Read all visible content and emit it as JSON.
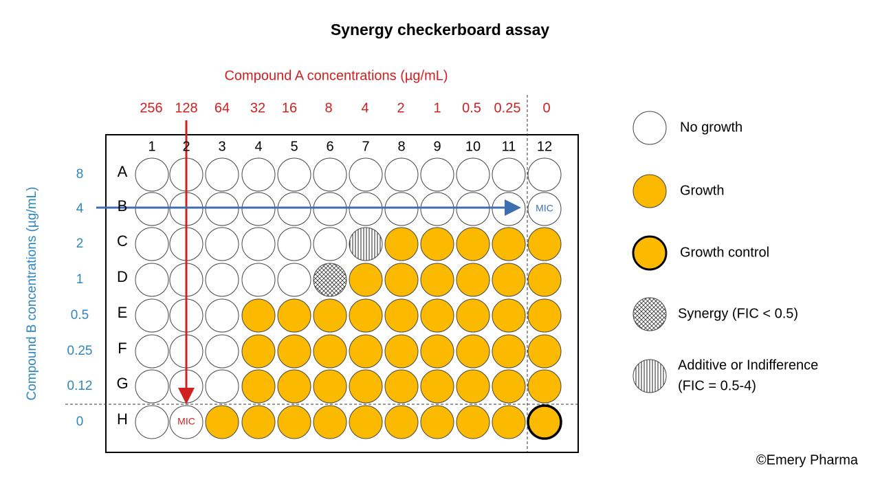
{
  "title": "Synergy checkerboard assay",
  "compound_a": {
    "label": "Compound A concentrations (µg/mL)",
    "concentrations": [
      "256",
      "128",
      "64",
      "32",
      "16",
      "8",
      "4",
      "2",
      "1",
      "0.5",
      "0.25",
      "0"
    ]
  },
  "compound_b": {
    "label": "Compound B concentrations (µg/mL)",
    "concentrations": [
      "8",
      "4",
      "2",
      "1",
      "0.5",
      "0.25",
      "0.12",
      "0"
    ]
  },
  "plate": {
    "columns": [
      "1",
      "2",
      "3",
      "4",
      "5",
      "6",
      "7",
      "8",
      "9",
      "10",
      "11",
      "12"
    ],
    "rows": [
      "A",
      "B",
      "C",
      "D",
      "E",
      "F",
      "G",
      "H"
    ]
  },
  "mic_labels": {
    "compound_a": "MIC",
    "compound_b": "MIC"
  },
  "legend": [
    {
      "lines": [
        "No growth"
      ]
    },
    {
      "lines": [
        "Growth"
      ]
    },
    {
      "lines": [
        "Growth control"
      ]
    },
    {
      "lines": [
        "Synergy (FIC < 0.5)"
      ]
    },
    {
      "lines": [
        "Additive or Indifference",
        "(FIC = 0.5-4)"
      ]
    }
  ],
  "copyright": "©Emery Pharma"
}
